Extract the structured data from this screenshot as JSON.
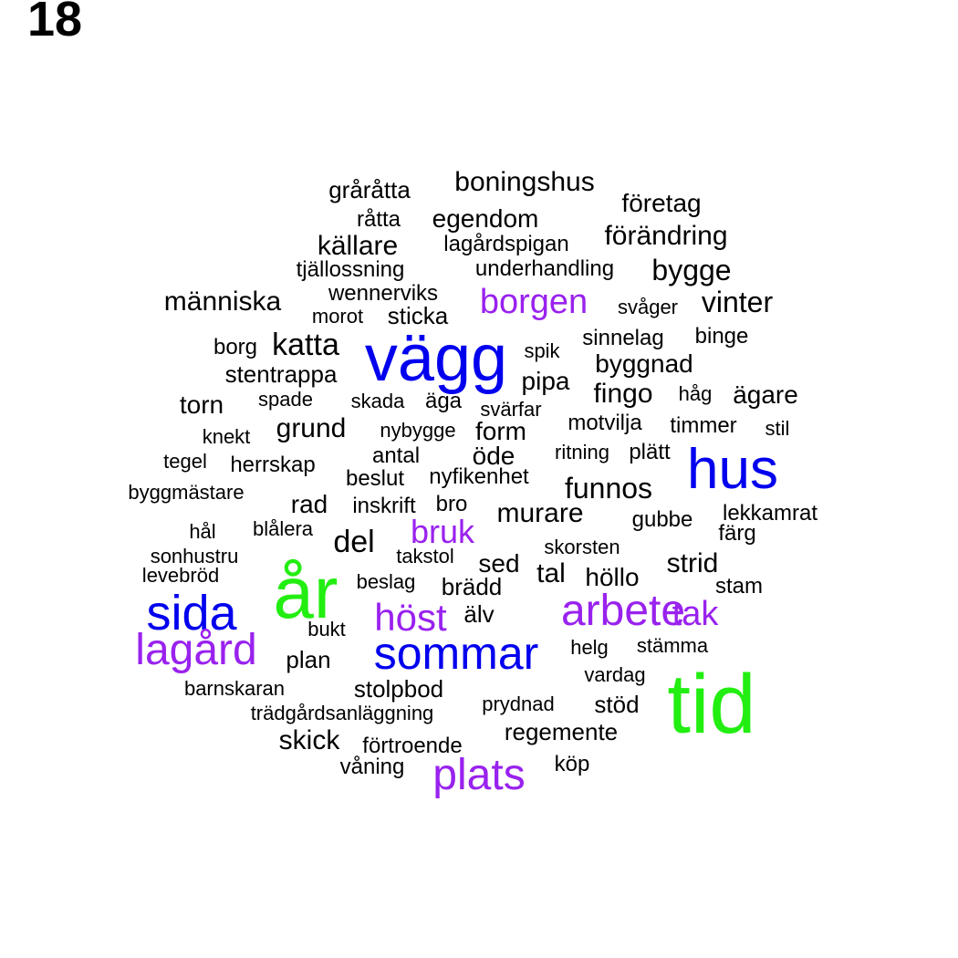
{
  "page_number": "18",
  "colors": {
    "green": "#22ee11",
    "blue": "#0000ee",
    "purple": "#9922ee",
    "black": "#000000"
  },
  "words": [
    {
      "text": "tid",
      "color": "green"
    },
    {
      "text": "år",
      "color": "green"
    },
    {
      "text": "vägg",
      "color": "blue"
    },
    {
      "text": "hus",
      "color": "blue"
    },
    {
      "text": "sida",
      "color": "blue"
    },
    {
      "text": "sommar",
      "color": "blue"
    },
    {
      "text": "lagård",
      "color": "purple"
    },
    {
      "text": "arbete",
      "color": "purple"
    },
    {
      "text": "plats",
      "color": "purple"
    },
    {
      "text": "höst",
      "color": "purple"
    },
    {
      "text": "borgen",
      "color": "purple"
    },
    {
      "text": "tak",
      "color": "purple"
    },
    {
      "text": "bruk",
      "color": "purple"
    },
    {
      "text": "boningshus",
      "color": "black"
    },
    {
      "text": "gråråtta",
      "color": "black"
    },
    {
      "text": "företag",
      "color": "black"
    },
    {
      "text": "råtta",
      "color": "black"
    },
    {
      "text": "egendom",
      "color": "black"
    },
    {
      "text": "förändring",
      "color": "black"
    },
    {
      "text": "källare",
      "color": "black"
    },
    {
      "text": "lagårdspigan",
      "color": "black"
    },
    {
      "text": "tjällossning",
      "color": "black"
    },
    {
      "text": "underhandling",
      "color": "black"
    },
    {
      "text": "bygge",
      "color": "black"
    },
    {
      "text": "människa",
      "color": "black"
    },
    {
      "text": "wennerviks",
      "color": "black"
    },
    {
      "text": "vinter",
      "color": "black"
    },
    {
      "text": "svåger",
      "color": "black"
    },
    {
      "text": "morot",
      "color": "black"
    },
    {
      "text": "sticka",
      "color": "black"
    },
    {
      "text": "sinnelag",
      "color": "black"
    },
    {
      "text": "binge",
      "color": "black"
    },
    {
      "text": "borg",
      "color": "black"
    },
    {
      "text": "katta",
      "color": "black"
    },
    {
      "text": "spik",
      "color": "black"
    },
    {
      "text": "byggnad",
      "color": "black"
    },
    {
      "text": "stentrappa",
      "color": "black"
    },
    {
      "text": "pipa",
      "color": "black"
    },
    {
      "text": "håg",
      "color": "black"
    },
    {
      "text": "ägare",
      "color": "black"
    },
    {
      "text": "torn",
      "color": "black"
    },
    {
      "text": "spade",
      "color": "black"
    },
    {
      "text": "skada",
      "color": "black"
    },
    {
      "text": "äga",
      "color": "black"
    },
    {
      "text": "fingo",
      "color": "black"
    },
    {
      "text": "svärfar",
      "color": "black"
    },
    {
      "text": "motvilja",
      "color": "black"
    },
    {
      "text": "timmer",
      "color": "black"
    },
    {
      "text": "knekt",
      "color": "black"
    },
    {
      "text": "grund",
      "color": "black"
    },
    {
      "text": "nybygge",
      "color": "black"
    },
    {
      "text": "form",
      "color": "black"
    },
    {
      "text": "stil",
      "color": "black"
    },
    {
      "text": "tegel",
      "color": "black"
    },
    {
      "text": "herrskap",
      "color": "black"
    },
    {
      "text": "antal",
      "color": "black"
    },
    {
      "text": "öde",
      "color": "black"
    },
    {
      "text": "ritning",
      "color": "black"
    },
    {
      "text": "plätt",
      "color": "black"
    },
    {
      "text": "beslut",
      "color": "black"
    },
    {
      "text": "nyfikenhet",
      "color": "black"
    },
    {
      "text": "funnos",
      "color": "black"
    },
    {
      "text": "byggmästare",
      "color": "black"
    },
    {
      "text": "rad",
      "color": "black"
    },
    {
      "text": "inskrift",
      "color": "black"
    },
    {
      "text": "bro",
      "color": "black"
    },
    {
      "text": "murare",
      "color": "black"
    },
    {
      "text": "lekkamrat",
      "color": "black"
    },
    {
      "text": "gubbe",
      "color": "black"
    },
    {
      "text": "hål",
      "color": "black"
    },
    {
      "text": "blålera",
      "color": "black"
    },
    {
      "text": "färg",
      "color": "black"
    },
    {
      "text": "del",
      "color": "black"
    },
    {
      "text": "sonhustru",
      "color": "black"
    },
    {
      "text": "takstol",
      "color": "black"
    },
    {
      "text": "skorsten",
      "color": "black"
    },
    {
      "text": "levebröd",
      "color": "black"
    },
    {
      "text": "sed",
      "color": "black"
    },
    {
      "text": "tal",
      "color": "black"
    },
    {
      "text": "strid",
      "color": "black"
    },
    {
      "text": "beslag",
      "color": "black"
    },
    {
      "text": "brädd",
      "color": "black"
    },
    {
      "text": "höllo",
      "color": "black"
    },
    {
      "text": "stam",
      "color": "black"
    },
    {
      "text": "älv",
      "color": "black"
    },
    {
      "text": "bukt",
      "color": "black"
    },
    {
      "text": "stämma",
      "color": "black"
    },
    {
      "text": "plan",
      "color": "black"
    },
    {
      "text": "helg",
      "color": "black"
    },
    {
      "text": "vardag",
      "color": "black"
    },
    {
      "text": "barnskaran",
      "color": "black"
    },
    {
      "text": "stolpbod",
      "color": "black"
    },
    {
      "text": "trädgårdsanläggning",
      "color": "black"
    },
    {
      "text": "prydnad",
      "color": "black"
    },
    {
      "text": "stöd",
      "color": "black"
    },
    {
      "text": "regemente",
      "color": "black"
    },
    {
      "text": "skick",
      "color": "black"
    },
    {
      "text": "förtroende",
      "color": "black"
    },
    {
      "text": "våning",
      "color": "black"
    },
    {
      "text": "köp",
      "color": "black"
    }
  ]
}
